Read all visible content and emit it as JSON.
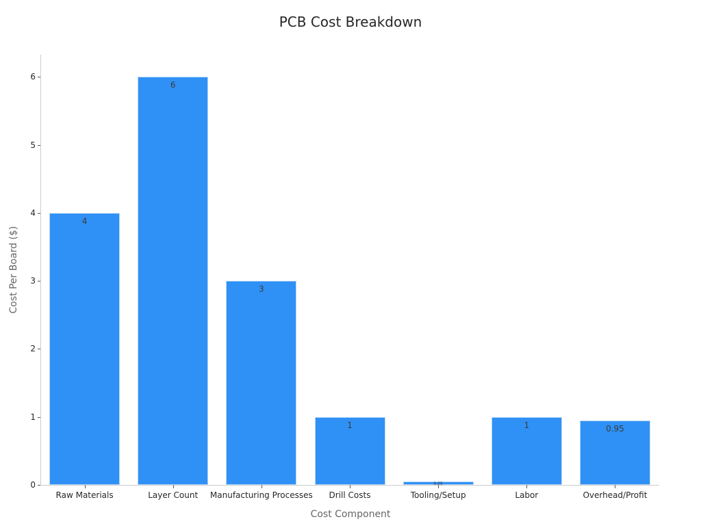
{
  "chart_data": {
    "type": "bar",
    "title": "PCB Cost Breakdown",
    "xlabel": "Cost Component",
    "ylabel": "Cost Per Board ($)",
    "categories": [
      "Raw Materials",
      "Layer Count",
      "Manufacturing Processes",
      "Drill Costs",
      "Tooling/Setup",
      "Labor",
      "Overhead/Profit"
    ],
    "values": [
      4,
      6,
      3,
      1,
      0.05,
      1,
      0.95
    ],
    "value_labels": [
      "4",
      "6",
      "3",
      "1",
      "0.05",
      "1",
      "0.95"
    ],
    "yticks": [
      0,
      1,
      2,
      3,
      4,
      5,
      6
    ],
    "ylim": [
      0,
      6.3
    ],
    "grid": false,
    "legend": null,
    "bar_color": "#2f91f5"
  }
}
